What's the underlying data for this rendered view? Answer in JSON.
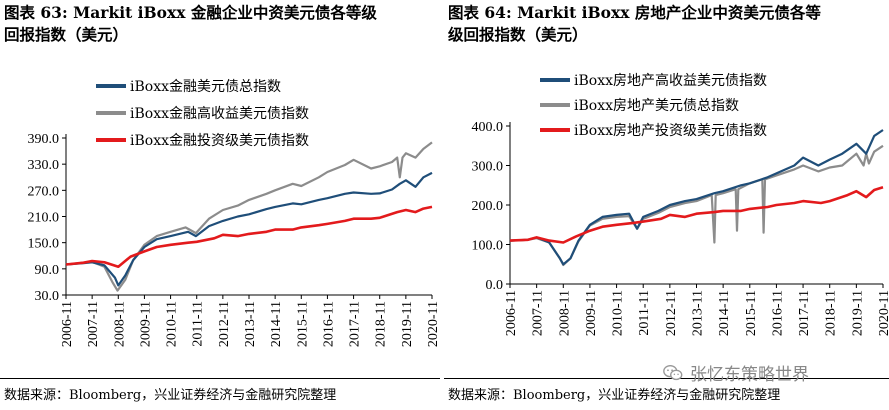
{
  "left": {
    "title": "图表 63:  Markit iBoxx 金融企业中资美元债各等级\n回报指数（美元）",
    "source": "数据来源：Bloomberg，兴业证券经济与金融研究院整理"
  },
  "right": {
    "title": "图表 64:  Markit iBoxx 房地产企业中资美元债各等\n级回报指数（美元）",
    "source": "数据来源：Bloomberg，兴业证券经济与金融研究院整理"
  },
  "watermark": {
    "text": "张忆东策略世界",
    "icon": "wechat-icon"
  },
  "chart_data": [
    {
      "type": "line",
      "title": "",
      "xlabel": "",
      "ylabel": "",
      "ylim": [
        30,
        390
      ],
      "yticks": [
        "390.0",
        "330.0",
        "270.0",
        "210.0",
        "150.0",
        "90.0",
        "30.0"
      ],
      "ytick_values": [
        390,
        330,
        270,
        210,
        150,
        90,
        30
      ],
      "xticks": [
        "2006-11",
        "2007-11",
        "2008-11",
        "2009-11",
        "2010-11",
        "2011-11",
        "2012-11",
        "2013-11",
        "2014-11",
        "2015-11",
        "2016-11",
        "2017-11",
        "2018-11",
        "2019-11",
        "2020-11"
      ],
      "xlim": [
        2006.83,
        2020.83
      ],
      "grid": false,
      "legend_position": "top-left",
      "series": [
        {
          "name": "iBoxx金融美元债总指数",
          "color": "#1f4e79",
          "x": [
            2006.83,
            2007.5,
            2007.83,
            2008.3,
            2008.7,
            2008.83,
            2009.1,
            2009.4,
            2009.83,
            2010.3,
            2010.83,
            2011.5,
            2011.8,
            2012.3,
            2012.83,
            2013.4,
            2013.83,
            2014.5,
            2014.83,
            2015.5,
            2015.83,
            2016.5,
            2016.83,
            2017.5,
            2017.83,
            2018.5,
            2018.83,
            2019.3,
            2019.6,
            2019.83,
            2020.2,
            2020.5,
            2020.83
          ],
          "y": [
            100,
            103,
            105,
            98,
            70,
            52,
            75,
            110,
            140,
            158,
            165,
            175,
            165,
            188,
            200,
            210,
            215,
            227,
            232,
            240,
            238,
            248,
            252,
            262,
            265,
            262,
            263,
            272,
            285,
            293,
            278,
            300,
            310
          ]
        },
        {
          "name": "iBoxx金融高收益美元债指数",
          "color": "#8c8c8c",
          "x": [
            2006.83,
            2007.5,
            2007.83,
            2008.3,
            2008.6,
            2008.8,
            2009.1,
            2009.4,
            2009.83,
            2010.3,
            2010.83,
            2011.4,
            2011.8,
            2012.3,
            2012.83,
            2013.4,
            2013.83,
            2014.5,
            2014.83,
            2015.5,
            2015.83,
            2016.5,
            2016.83,
            2017.5,
            2017.83,
            2018.5,
            2018.83,
            2019.3,
            2019.5,
            2019.6,
            2019.7,
            2019.83,
            2020.2,
            2020.5,
            2020.83
          ],
          "y": [
            100,
            104,
            106,
            95,
            60,
            40,
            65,
            110,
            145,
            165,
            175,
            185,
            172,
            205,
            225,
            235,
            248,
            262,
            270,
            285,
            280,
            300,
            312,
            328,
            340,
            320,
            325,
            335,
            345,
            300,
            345,
            355,
            345,
            365,
            380
          ]
        },
        {
          "name": "iBoxx金融投资级美元债指数",
          "color": "#e31a1c",
          "x": [
            2006.83,
            2007.5,
            2007.83,
            2008.3,
            2008.83,
            2009.3,
            2009.83,
            2010.3,
            2010.83,
            2011.5,
            2011.83,
            2012.5,
            2012.83,
            2013.4,
            2013.83,
            2014.5,
            2014.83,
            2015.5,
            2015.83,
            2016.5,
            2016.83,
            2017.5,
            2017.83,
            2018.5,
            2018.83,
            2019.5,
            2019.83,
            2020.2,
            2020.5,
            2020.83
          ],
          "y": [
            100,
            104,
            108,
            105,
            95,
            118,
            130,
            140,
            145,
            150,
            152,
            160,
            168,
            165,
            170,
            175,
            180,
            180,
            185,
            190,
            193,
            200,
            205,
            205,
            207,
            220,
            225,
            220,
            228,
            232
          ]
        }
      ]
    },
    {
      "type": "line",
      "title": "",
      "xlabel": "",
      "ylabel": "",
      "ylim": [
        0,
        400
      ],
      "yticks": [
        "400.0",
        "300.0",
        "200.0",
        "100.0",
        "0.0"
      ],
      "ytick_values": [
        400,
        300,
        200,
        100,
        0
      ],
      "xticks": [
        "2006-11",
        "2007-11",
        "2008-11",
        "2009-11",
        "2010-11",
        "2011-11",
        "2012-11",
        "2013-11",
        "2014-11",
        "2015-11",
        "2016-11",
        "2017-11",
        "2018-11",
        "2019-11",
        "2020-11"
      ],
      "xlim": [
        2006.83,
        2020.83
      ],
      "grid": false,
      "legend_position": "top-left",
      "series": [
        {
          "name": "iBoxx房地产高收益美元债指数",
          "color": "#1f4e79",
          "x": [
            2006.83,
            2007.5,
            2007.83,
            2008.3,
            2008.7,
            2008.83,
            2009.1,
            2009.4,
            2009.83,
            2010.3,
            2010.83,
            2011.3,
            2011.6,
            2011.83,
            2012.4,
            2012.83,
            2013.4,
            2013.83,
            2014.5,
            2014.83,
            2015.5,
            2015.83,
            2016.5,
            2016.83,
            2017.5,
            2017.83,
            2018.4,
            2018.83,
            2019.3,
            2019.83,
            2020.2,
            2020.5,
            2020.83
          ],
          "y": [
            110,
            112,
            118,
            105,
            65,
            50,
            65,
            110,
            150,
            170,
            175,
            178,
            140,
            170,
            185,
            200,
            210,
            215,
            230,
            235,
            250,
            255,
            270,
            280,
            300,
            320,
            300,
            315,
            330,
            355,
            330,
            375,
            390
          ]
        },
        {
          "name": "iBoxx房地产美元债总指数",
          "color": "#8c8c8c",
          "x": [
            2006.83,
            2007.5,
            2007.83,
            2008.3,
            2008.7,
            2008.83,
            2009.1,
            2009.4,
            2009.83,
            2010.3,
            2010.83,
            2011.3,
            2011.6,
            2011.83,
            2012.4,
            2012.83,
            2013.4,
            2013.83,
            2014.4,
            2014.5,
            2014.55,
            2014.83,
            2015.3,
            2015.35,
            2015.4,
            2015.83,
            2016.3,
            2016.35,
            2016.4,
            2016.83,
            2017.5,
            2017.83,
            2018.4,
            2018.83,
            2019.3,
            2019.83,
            2020.1,
            2020.2,
            2020.3,
            2020.5,
            2020.83
          ],
          "y": [
            110,
            112,
            116,
            105,
            65,
            48,
            65,
            108,
            148,
            165,
            170,
            172,
            140,
            165,
            180,
            195,
            205,
            210,
            225,
            105,
            225,
            230,
            240,
            135,
            240,
            255,
            265,
            130,
            265,
            275,
            290,
            300,
            285,
            295,
            300,
            330,
            300,
            330,
            305,
            335,
            350
          ]
        },
        {
          "name": "iBoxx房地产投资级美元债指数",
          "color": "#e31a1c",
          "x": [
            2006.83,
            2007.5,
            2007.83,
            2008.3,
            2008.83,
            2009.3,
            2009.83,
            2010.3,
            2010.83,
            2011.5,
            2011.83,
            2012.5,
            2012.83,
            2013.4,
            2013.83,
            2014.5,
            2014.83,
            2015.5,
            2015.83,
            2016.5,
            2016.83,
            2017.5,
            2017.83,
            2018.5,
            2018.83,
            2019.5,
            2019.83,
            2020.2,
            2020.5,
            2020.83
          ],
          "y": [
            110,
            112,
            118,
            110,
            105,
            120,
            135,
            145,
            150,
            155,
            158,
            165,
            175,
            170,
            178,
            182,
            185,
            185,
            190,
            195,
            200,
            205,
            210,
            205,
            210,
            225,
            235,
            220,
            238,
            245
          ]
        }
      ]
    }
  ]
}
